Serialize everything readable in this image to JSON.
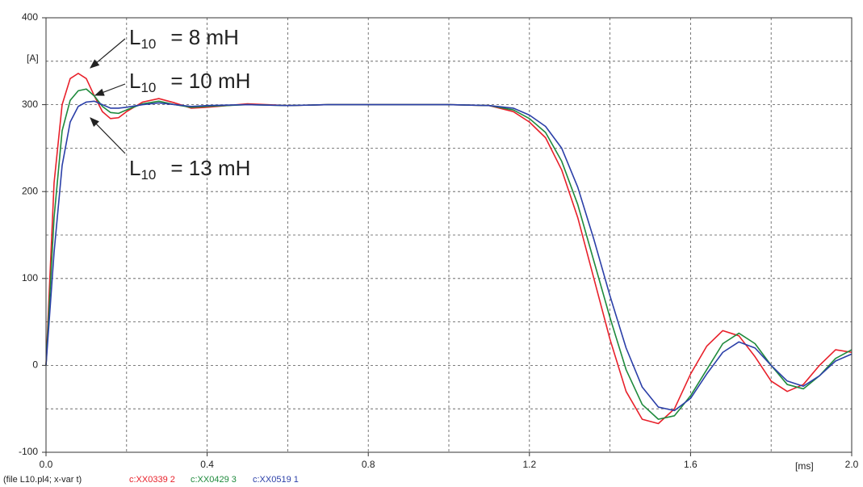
{
  "chart_data": {
    "type": "line",
    "y_unit": "[A]",
    "x_unit": "[ms]",
    "file_label": "(file L10.pl4; x-var t)",
    "annotations": [
      {
        "symbol": "L",
        "subscript": "10",
        "text": "=  8  mH"
      },
      {
        "symbol": "L",
        "subscript": "10",
        "text": "=  10 mH"
      },
      {
        "symbol": "L",
        "subscript": "10",
        "text": "=  13 mH"
      }
    ],
    "xlim": [
      0,
      2.0
    ],
    "ylim": [
      -100,
      400
    ],
    "xticks": [
      {
        "value": 0,
        "label": "0.0"
      },
      0.4,
      0.8,
      1.2,
      1.6,
      {
        "value": 2.0,
        "label": "2.0"
      }
    ],
    "yticks": [
      -100,
      0,
      100,
      200,
      300,
      400
    ],
    "xgrid": [
      0.2,
      0.4,
      0.6,
      0.8,
      1.0,
      1.2,
      1.4,
      1.6,
      1.8
    ],
    "ygrid": [
      -50,
      0,
      50,
      100,
      150,
      200,
      250,
      300,
      350
    ],
    "grid": true,
    "x": [
      0,
      0.02,
      0.04,
      0.06,
      0.08,
      0.1,
      0.12,
      0.14,
      0.16,
      0.18,
      0.2,
      0.24,
      0.28,
      0.32,
      0.36,
      0.4,
      0.5,
      0.6,
      0.7,
      0.8,
      0.9,
      1.0,
      1.1,
      1.16,
      1.2,
      1.24,
      1.28,
      1.32,
      1.36,
      1.4,
      1.44,
      1.48,
      1.52,
      1.56,
      1.6,
      1.64,
      1.68,
      1.72,
      1.76,
      1.8,
      1.84,
      1.88,
      1.92,
      1.96,
      2.0
    ],
    "series": [
      {
        "name": "c:XX0339 2",
        "color": "#e8202a",
        "values": [
          0,
          210,
          300,
          330,
          336,
          330,
          310,
          292,
          284,
          285,
          292,
          303,
          307,
          302,
          296,
          297,
          301,
          299,
          300,
          300,
          300,
          300,
          299,
          292,
          280,
          262,
          225,
          170,
          100,
          30,
          -30,
          -62,
          -67,
          -50,
          -10,
          22,
          40,
          34,
          10,
          -18,
          -30,
          -22,
          0,
          18,
          15
        ]
      },
      {
        "name": "c:XX0429 3",
        "color": "#1e8a3c",
        "values": [
          0,
          170,
          270,
          305,
          316,
          318,
          310,
          298,
          291,
          290,
          294,
          301,
          304,
          300,
          297,
          298,
          300,
          299,
          300,
          300,
          300,
          300,
          299,
          294,
          284,
          268,
          235,
          185,
          120,
          55,
          -5,
          -45,
          -62,
          -58,
          -35,
          -5,
          25,
          37,
          25,
          0,
          -22,
          -27,
          -12,
          8,
          18
        ]
      },
      {
        "name": "c:XX0519 1",
        "color": "#2b3fa8",
        "values": [
          0,
          130,
          230,
          280,
          298,
          303,
          304,
          300,
          296,
          296,
          297,
          300,
          302,
          300,
          298,
          299,
          300,
          299,
          300,
          300,
          300,
          300,
          299,
          296,
          288,
          275,
          250,
          205,
          145,
          80,
          20,
          -25,
          -48,
          -52,
          -38,
          -10,
          15,
          27,
          20,
          0,
          -18,
          -24,
          -12,
          5,
          13
        ]
      }
    ]
  }
}
